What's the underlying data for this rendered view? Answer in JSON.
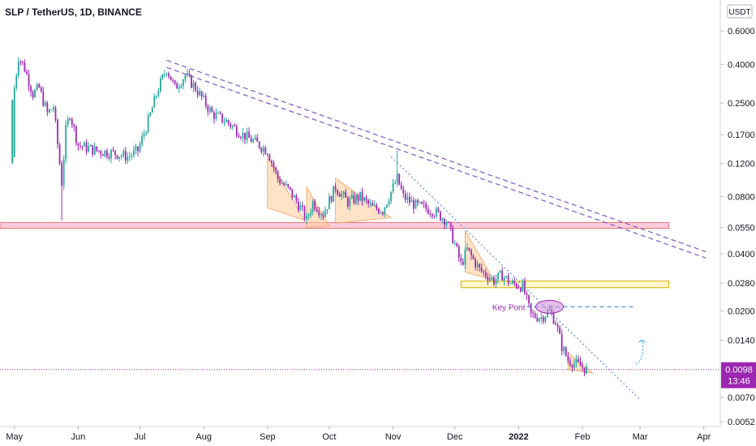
{
  "chart_data": {
    "type": "candlestick",
    "title": "SLP / TetherUS, 1D, BINANCE",
    "currency_badge": "USDT",
    "y_scale": "log",
    "ylim": [
      0.0052,
      0.9
    ],
    "y_ticks": [
      {
        "value": 0.6,
        "label": "0.6000"
      },
      {
        "value": 0.4,
        "label": "0.4000"
      },
      {
        "value": 0.25,
        "label": "0.2500"
      },
      {
        "value": 0.17,
        "label": "0.1700"
      },
      {
        "value": 0.12,
        "label": "0.1200"
      },
      {
        "value": 0.08,
        "label": "0.0800"
      },
      {
        "value": 0.055,
        "label": "0.0550"
      },
      {
        "value": 0.04,
        "label": "0.0400"
      },
      {
        "value": 0.028,
        "label": "0.0280"
      },
      {
        "value": 0.02,
        "label": "0.0200"
      },
      {
        "value": 0.014,
        "label": "0.0140"
      },
      {
        "value": 0.007,
        "label": "0.0070"
      },
      {
        "value": 0.0052,
        "label": "0.0052"
      }
    ],
    "x_ticks": [
      {
        "date": "2021-05-01",
        "label": "May"
      },
      {
        "date": "2021-06-01",
        "label": "Jun"
      },
      {
        "date": "2021-07-01",
        "label": "Jul"
      },
      {
        "date": "2021-08-01",
        "label": "Aug"
      },
      {
        "date": "2021-09-01",
        "label": "Sep"
      },
      {
        "date": "2021-10-01",
        "label": "Oct"
      },
      {
        "date": "2021-11-01",
        "label": "Nov"
      },
      {
        "date": "2021-12-01",
        "label": "Dec"
      },
      {
        "date": "2022-01-01",
        "label": "2022",
        "bold": true
      },
      {
        "date": "2022-02-01",
        "label": "Feb"
      },
      {
        "date": "2022-03-01",
        "label": "Mar"
      },
      {
        "date": "2022-04-01",
        "label": "Apr"
      }
    ],
    "x_range": [
      "2021-04-24",
      "2022-04-09"
    ],
    "last_price": {
      "value": 0.0098,
      "label": "0.0098",
      "countdown": "13:46"
    },
    "colors": {
      "up": "#26a69a",
      "down": "#9c27b0",
      "tag": "#9c27b0",
      "support_zone": "#f8bbd0",
      "support_border": "#e57373",
      "resistance_zone": "#fff3c4",
      "resistance_border": "#d4b106",
      "triangle": "#ffcc99",
      "trend": "#7e57c2",
      "dotted": "#5c8ad6",
      "key": "#ce93d8"
    },
    "series": [
      {
        "anchors": [
          [
            "2021-04-30",
            0.13
          ],
          [
            "2021-05-01",
            0.3
          ],
          [
            "2021-05-03",
            0.44
          ],
          [
            "2021-05-06",
            0.38
          ],
          [
            "2021-05-10",
            0.28
          ],
          [
            "2021-05-13",
            0.3
          ],
          [
            "2021-05-17",
            0.22
          ],
          [
            "2021-05-20",
            0.24
          ],
          [
            "2021-05-23",
            0.12
          ],
          [
            "2021-05-24",
            0.095
          ],
          [
            "2021-05-26",
            0.18
          ],
          [
            "2021-05-28",
            0.22
          ],
          [
            "2021-06-01",
            0.15
          ],
          [
            "2021-06-10",
            0.14
          ],
          [
            "2021-06-20",
            0.135
          ],
          [
            "2021-06-25",
            0.13
          ],
          [
            "2021-06-30",
            0.14
          ],
          [
            "2021-07-05",
            0.2
          ],
          [
            "2021-07-10",
            0.3
          ],
          [
            "2021-07-14",
            0.38
          ],
          [
            "2021-07-18",
            0.3
          ],
          [
            "2021-07-23",
            0.35
          ],
          [
            "2021-07-28",
            0.3
          ],
          [
            "2021-08-05",
            0.22
          ],
          [
            "2021-08-12",
            0.2
          ],
          [
            "2021-08-20",
            0.17
          ],
          [
            "2021-08-28",
            0.15
          ],
          [
            "2021-09-01",
            0.14
          ],
          [
            "2021-09-06",
            0.1
          ],
          [
            "2021-09-12",
            0.085
          ],
          [
            "2021-09-17",
            0.07
          ],
          [
            "2021-09-20",
            0.06
          ],
          [
            "2021-09-23",
            0.075
          ],
          [
            "2021-09-28",
            0.065
          ],
          [
            "2021-10-04",
            0.09
          ],
          [
            "2021-10-10",
            0.075
          ],
          [
            "2021-10-16",
            0.08
          ],
          [
            "2021-10-22",
            0.07
          ],
          [
            "2021-10-27",
            0.068
          ],
          [
            "2021-10-31",
            0.085
          ],
          [
            "2021-11-03",
            0.1
          ],
          [
            "2021-11-06",
            0.08
          ],
          [
            "2021-11-12",
            0.072
          ],
          [
            "2021-11-20",
            0.068
          ],
          [
            "2021-11-27",
            0.06
          ],
          [
            "2021-12-01",
            0.045
          ],
          [
            "2021-12-04",
            0.035
          ],
          [
            "2021-12-07",
            0.042
          ],
          [
            "2021-12-13",
            0.033
          ],
          [
            "2021-12-20",
            0.029
          ],
          [
            "2021-12-24",
            0.031
          ],
          [
            "2021-12-28",
            0.028
          ],
          [
            "2022-01-03",
            0.027
          ],
          [
            "2022-01-07",
            0.019
          ],
          [
            "2022-01-12",
            0.0185
          ],
          [
            "2022-01-16",
            0.02
          ],
          [
            "2022-01-19",
            0.0175
          ],
          [
            "2022-01-22",
            0.013
          ],
          [
            "2022-01-25",
            0.011
          ],
          [
            "2022-01-29",
            0.0105
          ],
          [
            "2022-02-03",
            0.0098
          ]
        ]
      }
    ],
    "annotations": [
      {
        "type": "zone",
        "label": "",
        "y": [
          0.0545,
          0.0585
        ],
        "x": [
          "2021-04-24",
          "2022-03-15"
        ]
      },
      {
        "type": "zone",
        "label": "",
        "y": [
          0.0265,
          0.0287
        ],
        "x": [
          "2021-12-04",
          "2022-03-15"
        ]
      },
      {
        "type": "trendline",
        "style": "dashed",
        "from": [
          "2021-07-14",
          0.42
        ],
        "to": [
          "2022-04-02",
          0.041
        ]
      },
      {
        "type": "trendline",
        "style": "dashed",
        "from": [
          "2021-07-14",
          0.385
        ],
        "to": [
          "2022-04-02",
          0.038
        ]
      },
      {
        "type": "trendline",
        "style": "dotted",
        "from": [
          "2021-10-31",
          0.13
        ],
        "to": [
          "2022-03-01",
          0.0068
        ]
      },
      {
        "type": "level",
        "style": "dashed",
        "y": 0.021,
        "x": [
          "2022-01-05",
          "2022-02-27"
        ]
      },
      {
        "type": "ellipse",
        "label": "Key Pont",
        "at": [
          "2022-01-16",
          0.021
        ]
      },
      {
        "type": "triangle",
        "points": [
          [
            "2021-09-01",
            0.13
          ],
          [
            "2021-09-19",
            0.06
          ],
          [
            "2021-09-01",
            0.07
          ]
        ]
      },
      {
        "type": "triangle",
        "points": [
          [
            "2021-09-20",
            0.09
          ],
          [
            "2021-10-01",
            0.056
          ],
          [
            "2021-09-20",
            0.055
          ]
        ]
      },
      {
        "type": "triangle",
        "points": [
          [
            "2021-10-04",
            0.1
          ],
          [
            "2021-10-31",
            0.062
          ],
          [
            "2021-10-04",
            0.058
          ]
        ]
      },
      {
        "type": "triangle",
        "points": [
          [
            "2021-12-06",
            0.053
          ],
          [
            "2021-12-20",
            0.029
          ],
          [
            "2021-12-06",
            0.032
          ]
        ]
      },
      {
        "type": "triangle",
        "points": [
          [
            "2022-01-25",
            0.012
          ],
          [
            "2022-02-06",
            0.0094
          ],
          [
            "2022-01-25",
            0.0098
          ]
        ]
      },
      {
        "type": "arrow",
        "style": "dotted",
        "from": [
          "2022-02-27",
          0.0105
        ],
        "to": [
          "2022-03-02",
          0.014
        ]
      }
    ]
  }
}
